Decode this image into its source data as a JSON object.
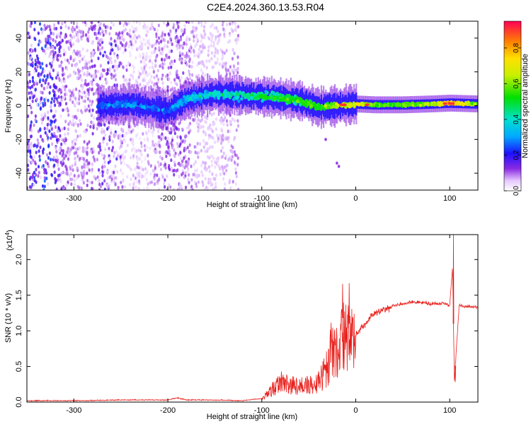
{
  "title": "C2E4.2024.360.13.53.R04",
  "chart_data": [
    {
      "type": "heatmap",
      "xlabel": "Height of straight line (km)",
      "ylabel": "Frequency (Hz)",
      "xlim": [
        -350,
        130
      ],
      "ylim": [
        -50,
        50
      ],
      "x_ticks": [
        -300,
        -200,
        -100,
        0,
        100
      ],
      "x_tick_labels": [
        "-300",
        "-200",
        "-100",
        "0",
        "100"
      ],
      "y_ticks": [
        -40,
        -20,
        0,
        20,
        40
      ],
      "y_tick_labels": [
        "-40",
        "-20",
        "0",
        "20",
        "40"
      ],
      "colorbar": {
        "label": "Normalized spectral amplitude",
        "range": [
          0,
          0.95
        ],
        "ticks": [
          0.0,
          0.2,
          0.4,
          0.6,
          0.8
        ],
        "tick_labels": [
          "0.0",
          "0.2",
          "0.4",
          "0.6",
          "0.8"
        ],
        "colormap": "rainbow"
      },
      "noise_region_x": [
        -350,
        -125
      ],
      "signal_track": [
        {
          "x": -270,
          "f": 0,
          "amp": 0.3
        },
        {
          "x": -240,
          "f": 1,
          "amp": 0.35
        },
        {
          "x": -200,
          "f": -3,
          "amp": 0.3
        },
        {
          "x": -180,
          "f": 4,
          "amp": 0.4
        },
        {
          "x": -150,
          "f": 7,
          "amp": 0.45
        },
        {
          "x": -120,
          "f": 6,
          "amp": 0.5
        },
        {
          "x": -90,
          "f": 5,
          "amp": 0.55
        },
        {
          "x": -60,
          "f": 3,
          "amp": 0.6
        },
        {
          "x": -40,
          "f": -1,
          "amp": 0.6
        },
        {
          "x": -20,
          "f": 0,
          "amp": 0.7
        },
        {
          "x": 0,
          "f": 1,
          "amp": 0.75
        },
        {
          "x": 20,
          "f": 0.5,
          "amp": 0.6
        },
        {
          "x": 50,
          "f": 0.5,
          "amp": 0.6
        },
        {
          "x": 80,
          "f": 1,
          "amp": 0.65
        },
        {
          "x": 100,
          "f": 1.5,
          "amp": 0.85
        },
        {
          "x": 130,
          "f": 1,
          "amp": 0.6
        }
      ]
    },
    {
      "type": "line",
      "xlabel": "Height of straight line (km)",
      "ylabel": "SNR (10 * v/v)",
      "y_multiplier": "(x10",
      "y_multiplier_exp": "4",
      "y_multiplier_close": ")",
      "xlim": [
        -350,
        130
      ],
      "ylim": [
        0,
        2.35
      ],
      "x_ticks": [
        -300,
        -200,
        -100,
        0,
        100
      ],
      "x_tick_labels": [
        "-300",
        "-200",
        "-100",
        "0",
        "100"
      ],
      "y_ticks": [
        0.0,
        0.5,
        1.0,
        1.5,
        2.0
      ],
      "y_tick_labels": [
        "0.0",
        "0.5",
        "1.0",
        "1.5",
        "2.0"
      ],
      "color": "#e8211d",
      "series": [
        {
          "x": [
            -350,
            -300,
            -250,
            -200,
            -190,
            -180,
            -150,
            -120,
            -100,
            -90,
            -80,
            -70,
            -60,
            -50,
            -45,
            -40,
            -30,
            -25,
            -20,
            -15,
            -10,
            -5,
            0,
            10,
            20,
            30,
            40,
            50,
            60,
            70,
            80,
            90,
            95,
            100,
            103,
            105,
            110,
            120,
            130
          ],
          "y": [
            0.02,
            0.02,
            0.03,
            0.03,
            0.06,
            0.03,
            0.03,
            0.02,
            0.05,
            0.2,
            0.35,
            0.3,
            0.28,
            0.3,
            0.3,
            0.33,
            0.6,
            1.0,
            0.9,
            1.2,
            1.1,
            1.1,
            0.95,
            1.1,
            1.25,
            1.3,
            1.35,
            1.38,
            1.4,
            1.4,
            1.38,
            1.38,
            1.39,
            1.35,
            1.9,
            0.3,
            1.35,
            1.34,
            1.33
          ]
        }
      ],
      "spikes": [
        {
          "x": -14,
          "y": 1.66
        },
        {
          "x": -7,
          "y": 1.67
        },
        {
          "x": 104,
          "y": 2.35
        },
        {
          "x": 106,
          "y": 0.28
        }
      ]
    }
  ]
}
